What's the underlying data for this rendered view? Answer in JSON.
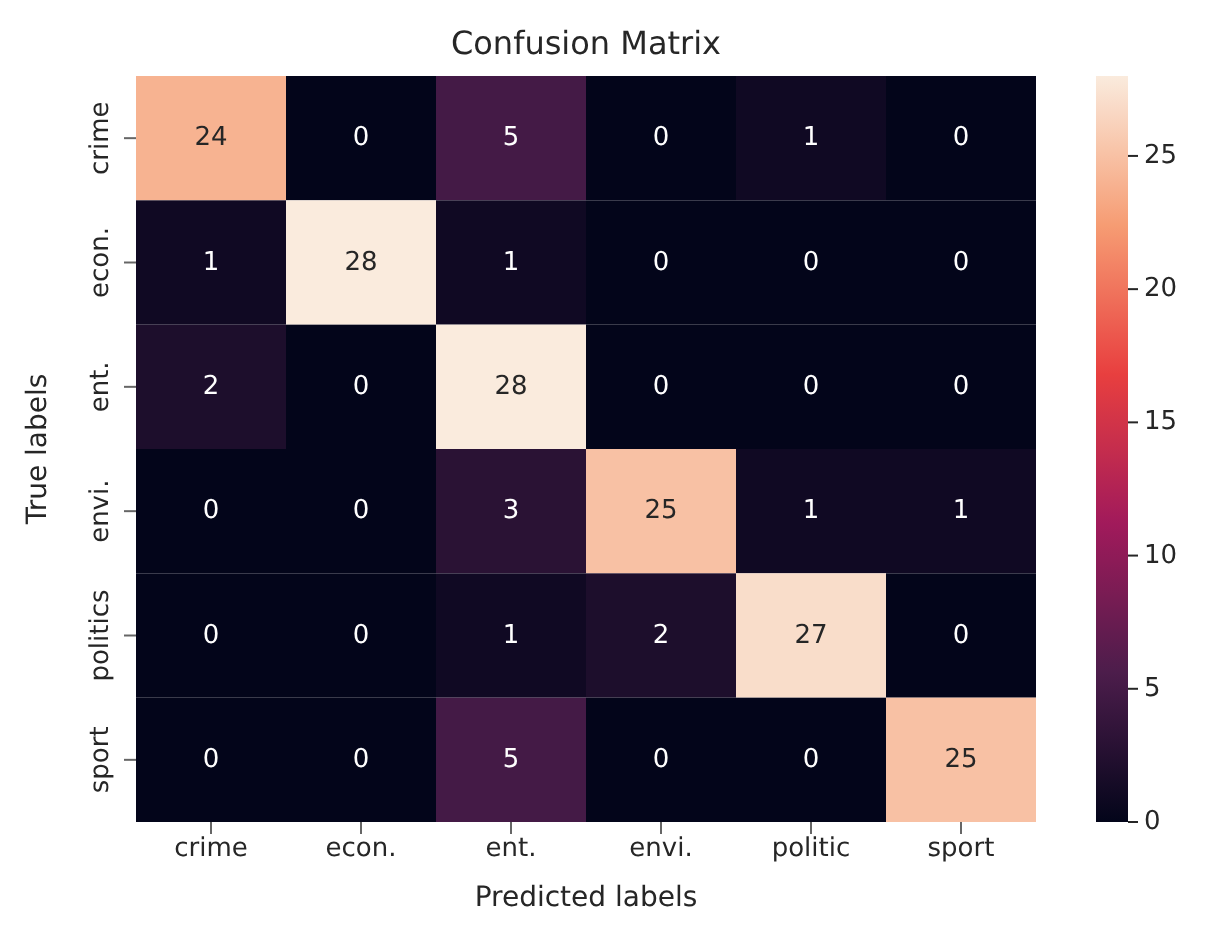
{
  "chart_data": {
    "type": "heatmap",
    "title": "Confusion Matrix",
    "xlabel": "Predicted labels",
    "ylabel": "True labels",
    "categories": [
      "crime",
      "econ.",
      "ent.",
      "envi.",
      "politic",
      "sport"
    ],
    "y_categories": [
      "crime",
      "econ.",
      "ent.",
      "envi.",
      "politics",
      "sport"
    ],
    "cells": [
      [
        24,
        0,
        5,
        0,
        1,
        0
      ],
      [
        1,
        28,
        1,
        0,
        0,
        0
      ],
      [
        2,
        0,
        28,
        0,
        0,
        0
      ],
      [
        0,
        0,
        3,
        25,
        1,
        1
      ],
      [
        0,
        0,
        1,
        2,
        27,
        0
      ],
      [
        0,
        0,
        5,
        0,
        0,
        25
      ]
    ],
    "data_labels": true,
    "clim": [
      0,
      28
    ],
    "cticks": [
      0,
      5,
      10,
      15,
      20,
      25
    ]
  }
}
